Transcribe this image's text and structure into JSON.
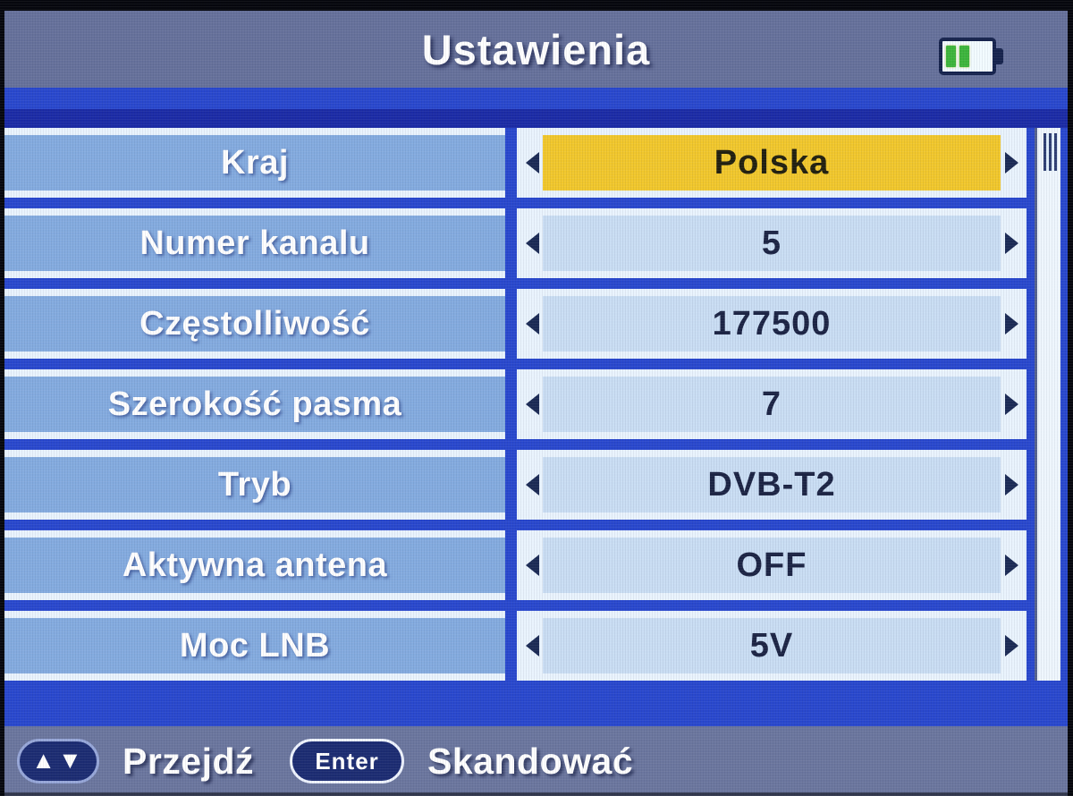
{
  "header": {
    "title": "Ustawienia",
    "battery": {
      "icon": "battery-icon",
      "level_bars": 2,
      "bar_color": "#3db53c"
    }
  },
  "settings": {
    "rows": [
      {
        "label": "Kraj",
        "value": "Polska",
        "selected": true
      },
      {
        "label": "Numer kanalu",
        "value": "5",
        "selected": false
      },
      {
        "label": "Częstolliwość",
        "value": "177500",
        "selected": false
      },
      {
        "label": "Szerokość pasma",
        "value": "7",
        "selected": false
      },
      {
        "label": "Tryb",
        "value": "DVB-T2",
        "selected": false
      },
      {
        "label": "Aktywna antena",
        "value": "OFF",
        "selected": false
      },
      {
        "label": "Moc LNB",
        "value": "5V",
        "selected": false
      }
    ]
  },
  "footer": {
    "nav_icon": "up-down-arrows-icon",
    "nav_icon_glyph": "▲▼",
    "nav_label": "Przejdź",
    "enter_key_label": "Enter",
    "enter_action_label": "Skandować"
  },
  "colors": {
    "background_blue": "#2948cd",
    "header_gray_blue": "#66719b",
    "row_label_blue": "#84abdf",
    "row_value_pale": "#c9ddf3",
    "selected_yellow": "#f1c72c",
    "cell_border_pale": "#e9f3fd",
    "dark_navy_text": "#1c2444",
    "white_text": "#ffffff"
  }
}
